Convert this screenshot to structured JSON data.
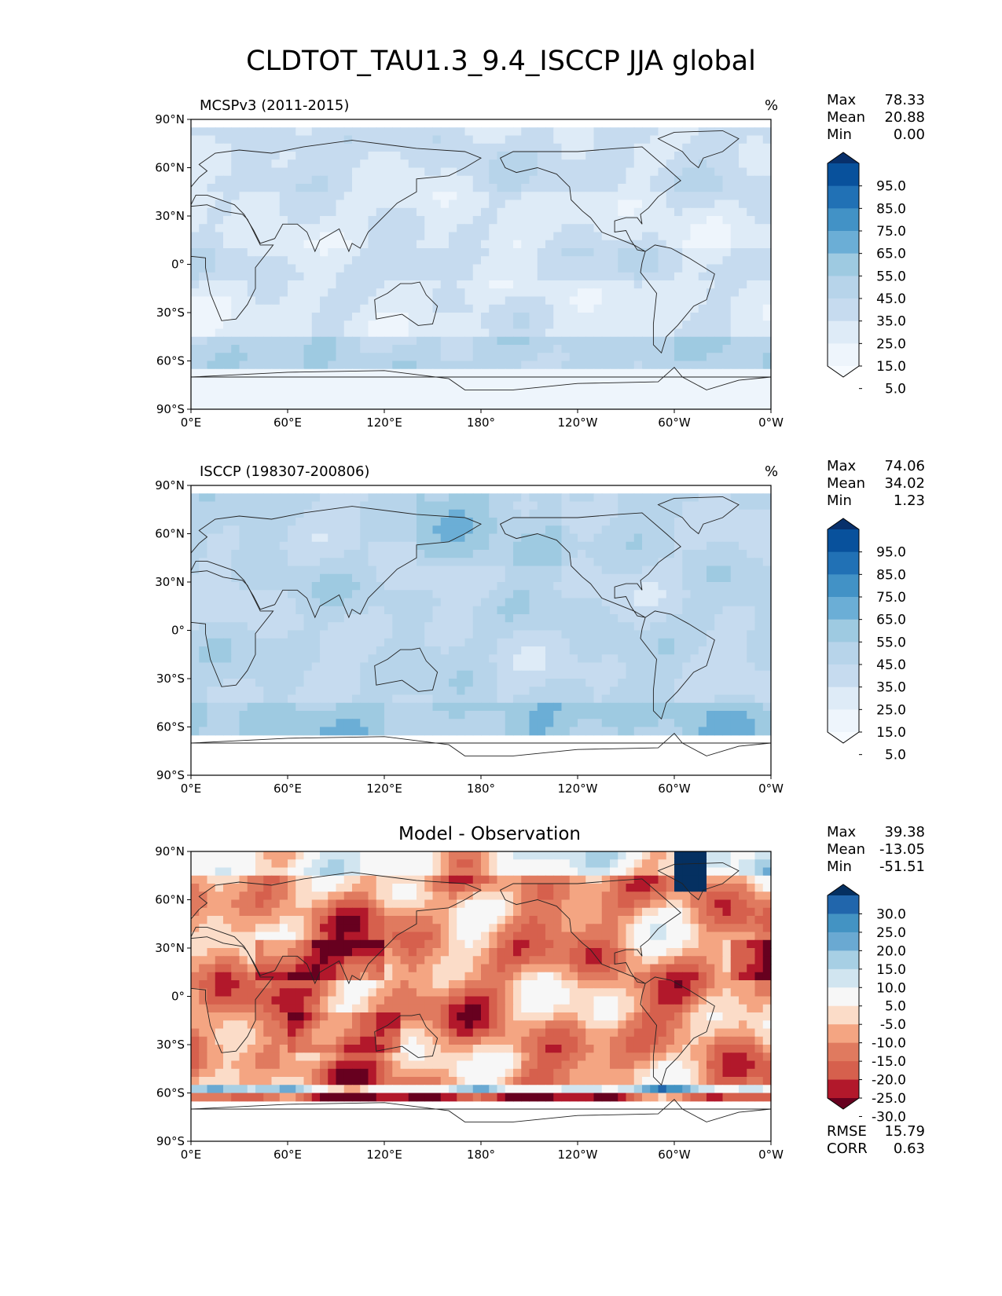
{
  "figure_title": "CLDTOT_TAU1.3_9.4_ISCCP JJA global",
  "lat_ticks": [
    "90°N",
    "60°N",
    "30°N",
    "0°",
    "30°S",
    "60°S",
    "90°S"
  ],
  "lon_ticks": [
    "0°E",
    "60°E",
    "120°E",
    "180°",
    "120°W",
    "60°W",
    "0°W"
  ],
  "panels": [
    {
      "title": "MCSPv3 (2011-2015)",
      "units": "%",
      "stats": [
        {
          "label": "Max",
          "value": "78.33"
        },
        {
          "label": "Mean",
          "value": "20.88"
        },
        {
          "label": "Min",
          "value": "0.00"
        }
      ],
      "colorbar_labels": [
        "95.0",
        "85.0",
        "75.0",
        "65.0",
        "55.0",
        "45.0",
        "35.0",
        "25.0",
        "15.0",
        "5.0"
      ],
      "colorbar_colors": [
        "#08306b",
        "#08519c",
        "#2171b5",
        "#4292c6",
        "#6baed6",
        "#9ecae1",
        "#b7d4ea",
        "#c6dbef",
        "#deebf7",
        "#eef5fc",
        "#f7fbff"
      ]
    },
    {
      "title": "ISCCP (198307-200806)",
      "units": "%",
      "stats": [
        {
          "label": "Max",
          "value": "74.06"
        },
        {
          "label": "Mean",
          "value": "34.02"
        },
        {
          "label": "Min",
          "value": "1.23"
        }
      ],
      "colorbar_labels": [
        "95.0",
        "85.0",
        "75.0",
        "65.0",
        "55.0",
        "45.0",
        "35.0",
        "25.0",
        "15.0",
        "5.0"
      ],
      "colorbar_colors": [
        "#08306b",
        "#08519c",
        "#2171b5",
        "#4292c6",
        "#6baed6",
        "#9ecae1",
        "#b7d4ea",
        "#c6dbef",
        "#deebf7",
        "#eef5fc",
        "#f7fbff"
      ]
    },
    {
      "title": "Model - Observation",
      "units": "",
      "stats": [
        {
          "label": "Max",
          "value": "39.38"
        },
        {
          "label": "Mean",
          "value": "-13.05"
        },
        {
          "label": "Min",
          "value": "-51.51"
        }
      ],
      "extra_stats": [
        {
          "label": "RMSE",
          "value": "15.79"
        },
        {
          "label": "CORR",
          "value": "0.63"
        }
      ],
      "colorbar_labels": [
        "30.0",
        "25.0",
        "20.0",
        "15.0",
        "10.0",
        "5.0",
        "-5.0",
        "-10.0",
        "-15.0",
        "-20.0",
        "-25.0",
        "-30.0"
      ],
      "colorbar_colors": [
        "#053061",
        "#2166ac",
        "#4393c3",
        "#6aa9d2",
        "#a7cfe4",
        "#d1e5f0",
        "#f7f7f7",
        "#fbdcc8",
        "#f4a582",
        "#e07a5f",
        "#d6604d",
        "#b2182b",
        "#67001f"
      ]
    }
  ],
  "chart_data": [
    {
      "type": "heatmap",
      "title": "MCSPv3 (2011-2015)",
      "units": "%",
      "xlabel": "",
      "ylabel": "",
      "x_ticks": [
        "0°E",
        "60°E",
        "120°E",
        "180°",
        "120°W",
        "60°W",
        "0°W"
      ],
      "y_ticks": [
        "90°N",
        "60°N",
        "30°N",
        "0°",
        "30°S",
        "60°S",
        "90°S"
      ],
      "xlim": [
        0,
        360
      ],
      "ylim": [
        -90,
        90
      ],
      "stats": {
        "max": 78.33,
        "mean": 20.88,
        "min": 0.0
      },
      "levels": [
        5,
        15,
        25,
        35,
        45,
        55,
        65,
        75,
        85,
        95
      ],
      "colormap": "Blues"
    },
    {
      "type": "heatmap",
      "title": "ISCCP (198307-200806)",
      "units": "%",
      "xlabel": "",
      "ylabel": "",
      "x_ticks": [
        "0°E",
        "60°E",
        "120°E",
        "180°",
        "120°W",
        "60°W",
        "0°W"
      ],
      "y_ticks": [
        "90°N",
        "60°N",
        "30°N",
        "0°",
        "30°S",
        "60°S",
        "90°S"
      ],
      "xlim": [
        0,
        360
      ],
      "ylim": [
        -90,
        90
      ],
      "stats": {
        "max": 74.06,
        "mean": 34.02,
        "min": 1.23
      },
      "levels": [
        5,
        15,
        25,
        35,
        45,
        55,
        65,
        75,
        85,
        95
      ],
      "colormap": "Blues"
    },
    {
      "type": "heatmap",
      "title": "Model - Observation",
      "xlabel": "",
      "ylabel": "",
      "x_ticks": [
        "0°E",
        "60°E",
        "120°E",
        "180°",
        "120°W",
        "60°W",
        "0°W"
      ],
      "y_ticks": [
        "90°N",
        "60°N",
        "30°N",
        "0°",
        "30°S",
        "60°S",
        "90°S"
      ],
      "xlim": [
        0,
        360
      ],
      "ylim": [
        -90,
        90
      ],
      "stats": {
        "max": 39.38,
        "mean": -13.05,
        "min": -51.51,
        "rmse": 15.79,
        "corr": 0.63
      },
      "levels": [
        -30,
        -25,
        -20,
        -15,
        -10,
        -5,
        5,
        10,
        15,
        20,
        25,
        30
      ],
      "colormap": "RdBu_r"
    }
  ]
}
